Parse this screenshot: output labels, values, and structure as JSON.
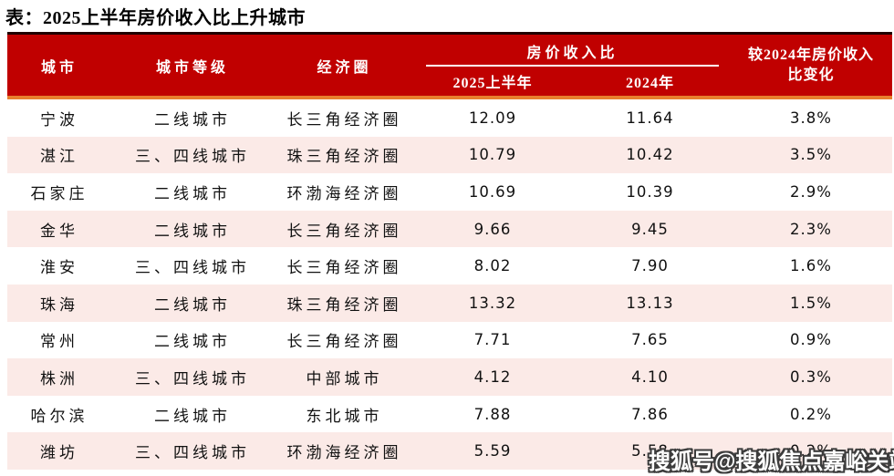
{
  "chart_data": {
    "type": "table",
    "title": "表：2025上半年房价收入比上升城市",
    "headers": {
      "city": "城市",
      "tier": "城市等级",
      "circle": "经济圈",
      "ratio_group": "房价收入比",
      "h1_2025": "2025上半年",
      "y2024": "2024年",
      "change_line1": "较2024年房价收入",
      "change_line2": "比变化",
      "change_full": "较2024年房价收入比变化"
    },
    "rows": [
      {
        "city": "宁波",
        "tier": "二线城市",
        "circle": "长三角经济圈",
        "h1_2025": "12.09",
        "y2024": "11.64",
        "change": "3.8%"
      },
      {
        "city": "湛江",
        "tier": "三、四线城市",
        "circle": "珠三角经济圈",
        "h1_2025": "10.79",
        "y2024": "10.42",
        "change": "3.5%"
      },
      {
        "city": "石家庄",
        "tier": "二线城市",
        "circle": "环渤海经济圈",
        "h1_2025": "10.69",
        "y2024": "10.39",
        "change": "2.9%"
      },
      {
        "city": "金华",
        "tier": "二线城市",
        "circle": "长三角经济圈",
        "h1_2025": "9.66",
        "y2024": "9.45",
        "change": "2.3%"
      },
      {
        "city": "淮安",
        "tier": "三、四线城市",
        "circle": "长三角经济圈",
        "h1_2025": "8.02",
        "y2024": "7.90",
        "change": "1.6%"
      },
      {
        "city": "珠海",
        "tier": "二线城市",
        "circle": "珠三角经济圈",
        "h1_2025": "13.32",
        "y2024": "13.13",
        "change": "1.5%"
      },
      {
        "city": "常州",
        "tier": "二线城市",
        "circle": "长三角经济圈",
        "h1_2025": "7.71",
        "y2024": "7.65",
        "change": "0.9%"
      },
      {
        "city": "株洲",
        "tier": "三、四线城市",
        "circle": "中部城市",
        "h1_2025": "4.12",
        "y2024": "4.10",
        "change": "0.3%"
      },
      {
        "city": "哈尔滨",
        "tier": "二线城市",
        "circle": "东北城市",
        "h1_2025": "7.88",
        "y2024": "7.86",
        "change": "0.2%"
      },
      {
        "city": "潍坊",
        "tier": "三、四线城市",
        "circle": "环渤海经济圈",
        "h1_2025": "5.59",
        "y2024": "5.58",
        "change": "0.2%"
      }
    ]
  },
  "watermark": {
    "text": "搜狐号@搜狐焦点嘉峪关站"
  },
  "colors": {
    "header_bg": "#C00000",
    "header_text": "#FFFFFF",
    "accent_line": "#E87E2D",
    "row_alt": "#FBEAE7",
    "top_border": "#200000",
    "body_text": "#111111",
    "watermark_outline": "#3C3C3C"
  }
}
